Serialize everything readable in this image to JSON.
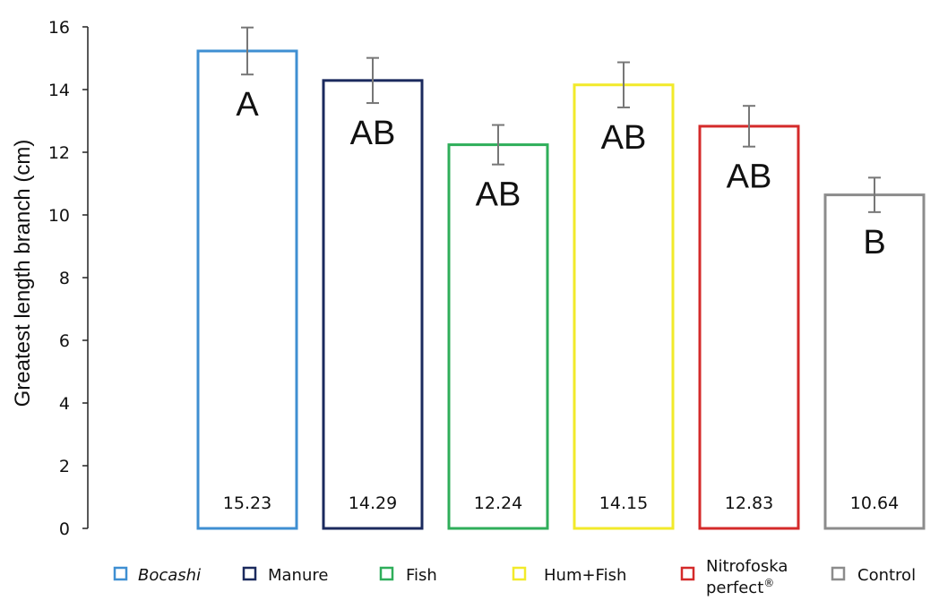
{
  "chart_data": {
    "type": "bar",
    "ylabel": "Greatest length branch (cm)",
    "xlabel": "",
    "ylim": [
      0,
      16
    ],
    "yticks": [
      0,
      2,
      4,
      6,
      8,
      10,
      12,
      14,
      16
    ],
    "grid": false,
    "legend_position": "bottom",
    "series": [
      {
        "name": "Bocashi",
        "legend_parts": [
          {
            "text": "Bocashi",
            "style": "italic"
          }
        ],
        "value": 15.23,
        "value_label": "15.23",
        "error": 0.75,
        "letter": "A",
        "color": "#3f8fd2"
      },
      {
        "name": "Manure",
        "legend_parts": [
          {
            "text": "Manure",
            "style": "normal"
          }
        ],
        "value": 14.29,
        "value_label": "14.29",
        "error": 0.72,
        "letter": "AB",
        "color": "#1b2a5e"
      },
      {
        "name": "Fish",
        "legend_parts": [
          {
            "text": "Fish",
            "style": "normal"
          }
        ],
        "value": 12.24,
        "value_label": "12.24",
        "error": 0.63,
        "letter": "AB",
        "color": "#2fae5a"
      },
      {
        "name": "Hum+Fish",
        "legend_parts": [
          {
            "text": "Hum+Fish",
            "style": "normal"
          }
        ],
        "value": 14.15,
        "value_label": "14.15",
        "error": 0.72,
        "letter": "AB",
        "color": "#f2ea2a"
      },
      {
        "name": "Nitrofoska perfect®",
        "legend_parts": [
          {
            "text": "Nitrofoska",
            "style": "normal"
          },
          {
            "text": "perfect",
            "style": "normal"
          },
          {
            "text": "®",
            "style": "sup"
          }
        ],
        "value": 12.83,
        "value_label": "12.83",
        "error": 0.65,
        "letter": "AB",
        "color": "#d42a2a"
      },
      {
        "name": "Control",
        "legend_parts": [
          {
            "text": "Control",
            "style": "normal"
          }
        ],
        "value": 10.64,
        "value_label": "10.64",
        "error": 0.55,
        "letter": "B",
        "color": "#8c8c8c"
      }
    ]
  }
}
